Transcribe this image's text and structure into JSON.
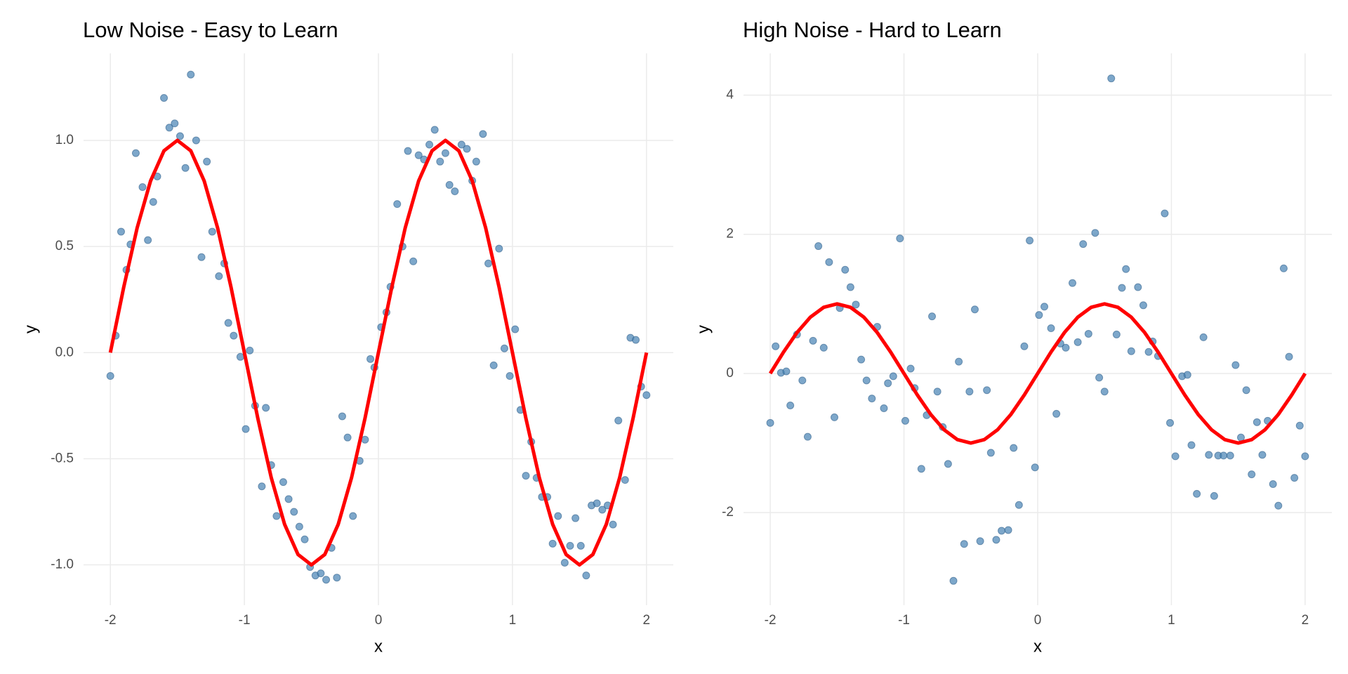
{
  "chart_data": [
    {
      "type": "scatter",
      "title": "Low Noise - Easy to Learn",
      "x_label": "x",
      "y_label": "y",
      "xlim": [
        -2.2,
        2.2
      ],
      "ylim": [
        -1.19,
        1.41
      ],
      "xticks": [
        -2,
        -1,
        0,
        1,
        2
      ],
      "yticks": [
        {
          "value": -1,
          "label": "-1.0"
        },
        {
          "value": -0.5,
          "label": "-0.5"
        },
        {
          "value": 0,
          "label": "0.0"
        },
        {
          "value": 0.5,
          "label": "0.5"
        },
        {
          "value": 1,
          "label": "1.0"
        }
      ],
      "grid": true,
      "series": [
        {
          "type": "scatter",
          "color": "#4682b4",
          "x": [
            -2.0,
            -1.96,
            -1.92,
            -1.88,
            -1.85,
            -1.81,
            -1.76,
            -1.72,
            -1.68,
            -1.65,
            -1.6,
            -1.56,
            -1.52,
            -1.48,
            -1.44,
            -1.4,
            -1.36,
            -1.32,
            -1.28,
            -1.24,
            -1.19,
            -1.15,
            -1.12,
            -1.08,
            -1.03,
            -0.99,
            -0.96,
            -0.92,
            -0.87,
            -0.84,
            -0.8,
            -0.76,
            -0.71,
            -0.67,
            -0.63,
            -0.59,
            -0.55,
            -0.51,
            -0.47,
            -0.43,
            -0.39,
            -0.35,
            -0.31,
            -0.27,
            -0.23,
            -0.19,
            -0.14,
            -0.1,
            -0.06,
            -0.03,
            0.02,
            0.06,
            0.09,
            0.14,
            0.18,
            0.22,
            0.26,
            0.3,
            0.34,
            0.38,
            0.42,
            0.46,
            0.5,
            0.53,
            0.57,
            0.62,
            0.66,
            0.7,
            0.73,
            0.78,
            0.82,
            0.86,
            0.9,
            0.94,
            0.98,
            1.02,
            1.06,
            1.1,
            1.14,
            1.18,
            1.22,
            1.26,
            1.3,
            1.34,
            1.39,
            1.43,
            1.47,
            1.51,
            1.55,
            1.59,
            1.63,
            1.67,
            1.71,
            1.75,
            1.79,
            1.84,
            1.88,
            1.92,
            1.96,
            2.0
          ],
          "values": [
            -0.11,
            0.08,
            0.57,
            0.39,
            0.51,
            0.94,
            0.78,
            0.53,
            0.71,
            0.83,
            1.2,
            1.06,
            1.08,
            1.02,
            0.87,
            1.31,
            1.0,
            0.45,
            0.9,
            0.57,
            0.36,
            0.42,
            0.14,
            0.08,
            -0.02,
            -0.36,
            0.01,
            -0.25,
            -0.63,
            -0.26,
            -0.53,
            -0.77,
            -0.61,
            -0.69,
            -0.75,
            -0.82,
            -0.88,
            -1.01,
            -1.05,
            -1.04,
            -1.07,
            -0.92,
            -1.06,
            -0.3,
            -0.4,
            -0.77,
            -0.51,
            -0.41,
            -0.03,
            -0.07,
            0.12,
            0.19,
            0.31,
            0.7,
            0.5,
            0.95,
            0.43,
            0.93,
            0.91,
            0.98,
            1.05,
            0.9,
            0.94,
            0.79,
            0.76,
            0.98,
            0.96,
            0.81,
            0.9,
            1.03,
            0.42,
            -0.06,
            0.49,
            0.02,
            -0.11,
            0.11,
            -0.27,
            -0.58,
            -0.42,
            -0.59,
            -0.68,
            -0.68,
            -0.9,
            -0.77,
            -0.99,
            -0.91,
            -0.78,
            -0.91,
            -1.05,
            -0.72,
            -0.71,
            -0.74,
            -0.72,
            -0.81,
            -0.32,
            -0.6,
            0.07,
            0.06,
            -0.16,
            -0.2
          ]
        },
        {
          "type": "line",
          "color": "#ff0000",
          "x": [
            -2.0,
            -1.9,
            -1.8,
            -1.7,
            -1.6,
            -1.5,
            -1.4,
            -1.3,
            -1.2,
            -1.1,
            -1.0,
            -0.9,
            -0.8,
            -0.7,
            -0.6,
            -0.5,
            -0.4,
            -0.3,
            -0.2,
            -0.1,
            0.0,
            0.1,
            0.2,
            0.3,
            0.4,
            0.5,
            0.6,
            0.7,
            0.8,
            0.9,
            1.0,
            1.1,
            1.2,
            1.3,
            1.4,
            1.5,
            1.6,
            1.7,
            1.8,
            1.9,
            2.0
          ],
          "values": [
            0,
            0.309,
            0.588,
            0.809,
            0.951,
            1,
            0.951,
            0.809,
            0.588,
            0.309,
            0,
            -0.309,
            -0.588,
            -0.809,
            -0.951,
            -1,
            -0.951,
            -0.809,
            -0.588,
            -0.309,
            0,
            0.309,
            0.588,
            0.809,
            0.951,
            1,
            0.951,
            0.809,
            0.588,
            0.309,
            0,
            -0.309,
            -0.588,
            -0.809,
            -0.951,
            -1,
            -0.951,
            -0.809,
            -0.588,
            -0.309,
            0
          ]
        }
      ]
    },
    {
      "type": "scatter",
      "title": "High Noise - Hard to Learn",
      "x_label": "x",
      "y_label": "y",
      "xlim": [
        -2.2,
        2.2
      ],
      "ylim": [
        -3.33,
        4.6
      ],
      "xticks": [
        -2,
        -1,
        0,
        1,
        2
      ],
      "yticks": [
        -2,
        0,
        2,
        4
      ],
      "grid": true,
      "series": [
        {
          "type": "scatter",
          "color": "#4682b4",
          "x": [
            -2.0,
            -1.96,
            -1.92,
            -1.88,
            -1.85,
            -1.8,
            -1.76,
            -1.72,
            -1.68,
            -1.64,
            -1.6,
            -1.56,
            -1.52,
            -1.48,
            -1.44,
            -1.4,
            -1.36,
            -1.32,
            -1.28,
            -1.24,
            -1.2,
            -1.15,
            -1.12,
            -1.08,
            -1.03,
            -0.99,
            -0.95,
            -0.92,
            -0.87,
            -0.83,
            -0.79,
            -0.75,
            -0.71,
            -0.67,
            -0.63,
            -0.59,
            -0.55,
            -0.51,
            -0.47,
            -0.43,
            -0.38,
            -0.35,
            -0.31,
            -0.27,
            -0.22,
            -0.18,
            -0.14,
            -0.1,
            -0.06,
            -0.02,
            0.01,
            0.05,
            0.1,
            0.14,
            0.17,
            0.21,
            0.26,
            0.3,
            0.34,
            0.38,
            0.43,
            0.46,
            0.5,
            0.55,
            0.59,
            0.63,
            0.66,
            0.7,
            0.75,
            0.79,
            0.83,
            0.86,
            0.9,
            0.95,
            0.99,
            1.03,
            1.08,
            1.12,
            1.15,
            1.19,
            1.24,
            1.28,
            1.32,
            1.35,
            1.39,
            1.44,
            1.48,
            1.52,
            1.56,
            1.6,
            1.64,
            1.68,
            1.72,
            1.76,
            1.8,
            1.84,
            1.88,
            1.92,
            1.96,
            2.0
          ],
          "values": [
            -0.71,
            0.39,
            0.01,
            0.03,
            -0.46,
            0.56,
            -0.1,
            -0.91,
            0.47,
            1.83,
            0.37,
            1.6,
            -0.63,
            0.94,
            1.49,
            1.24,
            0.99,
            0.2,
            -0.1,
            -0.36,
            0.67,
            -0.5,
            -0.14,
            -0.04,
            1.94,
            -0.68,
            0.07,
            -0.21,
            -1.37,
            -0.6,
            0.82,
            -0.26,
            -0.77,
            -1.3,
            -2.98,
            0.17,
            -2.45,
            -0.26,
            0.92,
            -2.41,
            -0.24,
            -1.14,
            -2.39,
            -2.26,
            -2.25,
            -1.07,
            -1.89,
            0.39,
            1.91,
            -1.35,
            0.84,
            0.96,
            0.65,
            -0.58,
            0.43,
            0.37,
            1.3,
            0.45,
            1.86,
            0.57,
            2.02,
            -0.06,
            -0.26,
            4.24,
            0.56,
            1.23,
            1.5,
            0.32,
            1.24,
            0.98,
            0.31,
            0.46,
            0.25,
            2.3,
            -0.71,
            -1.19,
            -0.04,
            -0.02,
            -1.03,
            -1.73,
            0.52,
            -1.17,
            -1.76,
            -1.18,
            -1.18,
            -1.18,
            0.12,
            -0.92,
            -0.24,
            -1.45,
            -0.7,
            -1.17,
            -0.68,
            -1.59,
            -1.9,
            1.51,
            0.24,
            -1.5,
            -0.75,
            -1.19
          ]
        },
        {
          "type": "line",
          "color": "#ff0000",
          "x": [
            -2.0,
            -1.9,
            -1.8,
            -1.7,
            -1.6,
            -1.5,
            -1.4,
            -1.3,
            -1.2,
            -1.1,
            -1.0,
            -0.9,
            -0.8,
            -0.7,
            -0.6,
            -0.5,
            -0.4,
            -0.3,
            -0.2,
            -0.1,
            0.0,
            0.1,
            0.2,
            0.3,
            0.4,
            0.5,
            0.6,
            0.7,
            0.8,
            0.9,
            1.0,
            1.1,
            1.2,
            1.3,
            1.4,
            1.5,
            1.6,
            1.7,
            1.8,
            1.9,
            2.0
          ],
          "values": [
            0,
            0.309,
            0.588,
            0.809,
            0.951,
            1,
            0.951,
            0.809,
            0.588,
            0.309,
            0,
            -0.309,
            -0.588,
            -0.809,
            -0.951,
            -1,
            -0.951,
            -0.809,
            -0.588,
            -0.309,
            0,
            0.309,
            0.588,
            0.809,
            0.951,
            1,
            0.951,
            0.809,
            0.588,
            0.309,
            0,
            -0.309,
            -0.588,
            -0.809,
            -0.951,
            -1,
            -0.951,
            -0.809,
            -0.588,
            -0.309,
            0
          ]
        }
      ]
    }
  ]
}
